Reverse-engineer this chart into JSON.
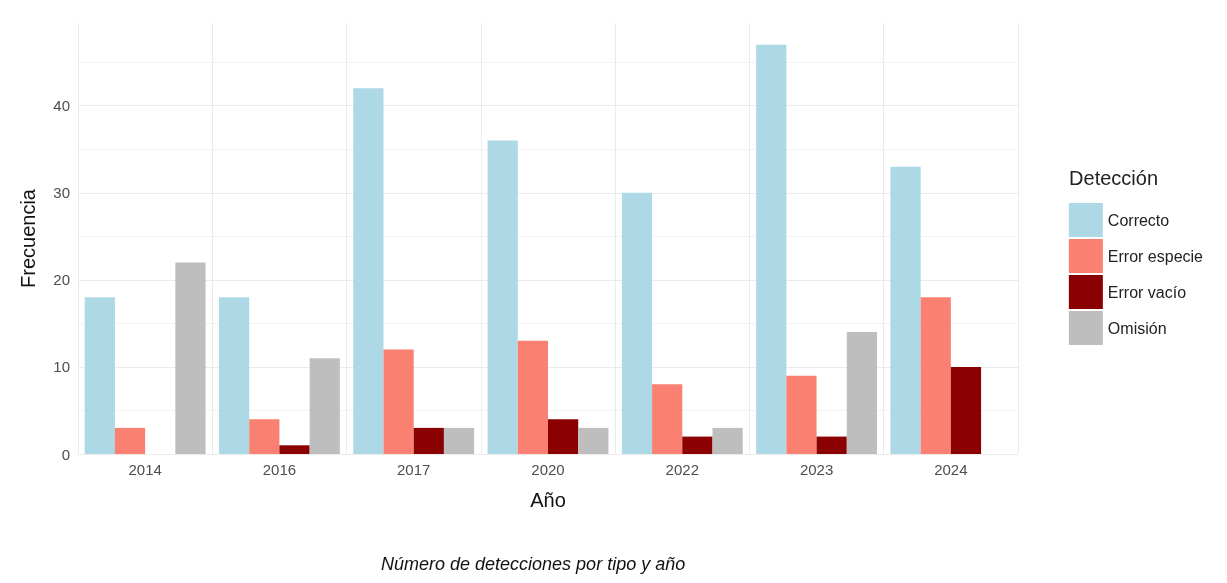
{
  "chart_data": {
    "type": "bar",
    "xlabel": "Año",
    "ylabel": "Frecuencia",
    "legend_title": "Detección",
    "annotations": [
      "Número de detecciones por tipo y año"
    ],
    "categories": [
      "2014",
      "2016",
      "2017",
      "2020",
      "2022",
      "2023",
      "2024"
    ],
    "series": [
      {
        "name": "Correcto",
        "color": "#add8e6",
        "values": [
          18,
          18,
          42,
          36,
          30,
          47,
          33
        ]
      },
      {
        "name": "Error especie",
        "color": "#fa8072",
        "values": [
          3,
          4,
          12,
          13,
          8,
          9,
          18
        ]
      },
      {
        "name": "Error vacío",
        "color": "#8b0000",
        "values": [
          null,
          1,
          3,
          4,
          2,
          2,
          10
        ]
      },
      {
        "name": "Omisión",
        "color": "#bebebe",
        "values": [
          22,
          11,
          3,
          3,
          3,
          14,
          null
        ]
      }
    ],
    "ylim": [
      0,
      49.5
    ],
    "yticks": [
      0,
      10,
      20,
      30,
      40
    ],
    "grid": true,
    "legend": "right"
  }
}
